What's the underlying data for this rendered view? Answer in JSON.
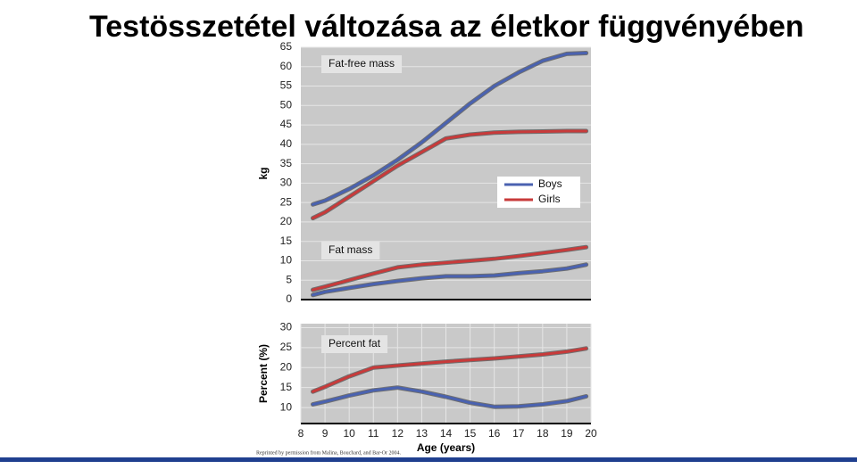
{
  "title": "Testösszetétel változása az életkor függvényében",
  "source": "Reprinted by permission from Malina, Bouchard, and Bar-Or 2004.",
  "chart_data": [
    {
      "type": "line",
      "ylabel": "kg",
      "annotations": [
        "Fat-free mass",
        "Fat mass"
      ],
      "x": [
        8.5,
        9,
        10,
        11,
        12,
        13,
        14,
        15,
        16,
        17,
        18,
        19,
        19.8
      ],
      "xlim": [
        8,
        20
      ],
      "ylim": [
        0,
        65
      ],
      "yticks": [
        0,
        5,
        10,
        15,
        20,
        25,
        30,
        35,
        40,
        45,
        50,
        55,
        60,
        65
      ],
      "grid": true,
      "legend": "right",
      "series": [
        {
          "name": "Boys",
          "color": "#4a62b0",
          "values": [
            24.5,
            25.5,
            28.5,
            32,
            36,
            40.5,
            45.5,
            50.5,
            55,
            58.5,
            61.5,
            63.3,
            63.5
          ]
        },
        {
          "name": "Girls",
          "color": "#c83a3a",
          "values": [
            21,
            22.5,
            26.5,
            30.5,
            34.5,
            38,
            41.5,
            42.5,
            43,
            43.2,
            43.3,
            43.4,
            43.4
          ]
        },
        {
          "name": "Boys",
          "color": "#4a62b0",
          "values": [
            1.2,
            2,
            3,
            4,
            4.8,
            5.5,
            6,
            6,
            6.2,
            6.8,
            7.3,
            8,
            9
          ]
        },
        {
          "name": "Girls",
          "color": "#c83a3a",
          "values": [
            2.5,
            3.3,
            5,
            6.7,
            8.3,
            9,
            9.5,
            10,
            10.5,
            11.2,
            12,
            12.8,
            13.5
          ]
        }
      ]
    },
    {
      "type": "line",
      "ylabel": "Percent (%)",
      "xlabel": "Age (years)",
      "annotations": [
        "Percent fat"
      ],
      "x": [
        8.5,
        9,
        10,
        11,
        12,
        13,
        14,
        15,
        16,
        17,
        18,
        19,
        19.8
      ],
      "xlim": [
        8,
        20
      ],
      "ylim": [
        6,
        31
      ],
      "xticks": [
        8,
        9,
        10,
        11,
        12,
        13,
        14,
        15,
        16,
        17,
        18,
        19,
        20
      ],
      "yticks": [
        10,
        15,
        20,
        25,
        30
      ],
      "grid": true,
      "series": [
        {
          "name": "Boys",
          "color": "#4a62b0",
          "values": [
            10.8,
            11.5,
            13,
            14.3,
            15,
            14,
            12.7,
            11.2,
            10.2,
            10.3,
            10.8,
            11.6,
            12.8
          ]
        },
        {
          "name": "Girls",
          "color": "#c83a3a",
          "values": [
            14,
            15.2,
            17.8,
            20,
            20.5,
            21,
            21.5,
            21.9,
            22.3,
            22.8,
            23.3,
            24,
            24.8
          ]
        }
      ]
    }
  ]
}
